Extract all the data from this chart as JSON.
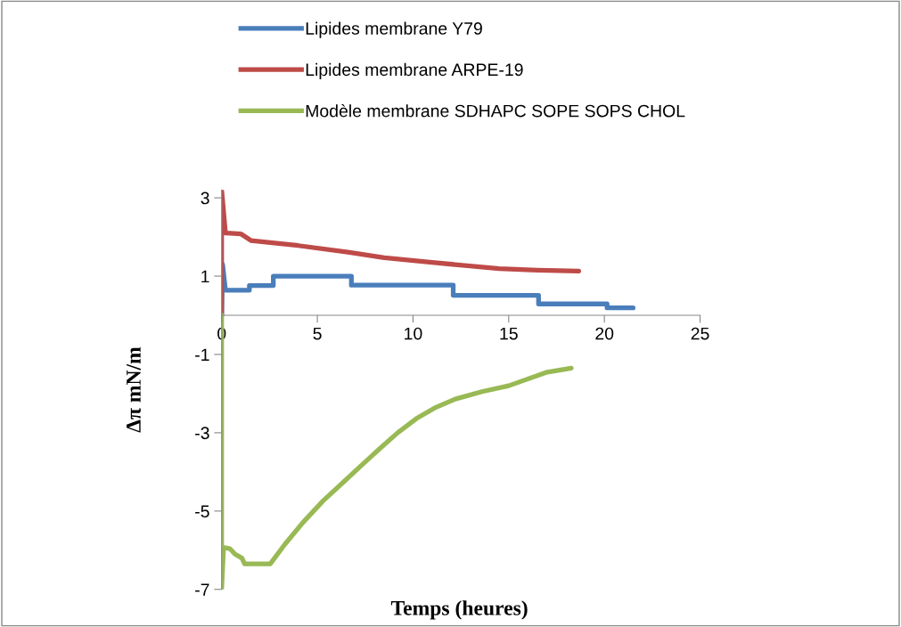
{
  "chart_data": {
    "type": "line",
    "xlabel": "Temps (heures)",
    "ylabel": "Δπ mN/m",
    "xlim": [
      0,
      25
    ],
    "xticks": [
      0,
      5,
      10,
      15,
      20,
      25
    ],
    "ylim": [
      -7,
      3.2
    ],
    "yticks": [
      -7,
      -5,
      -3,
      -1,
      1,
      3
    ],
    "grid": false,
    "legend": "top",
    "line_style": "solid",
    "marker": "none",
    "series": [
      {
        "name": "Lipides membrane Y79",
        "color": "#4a7ebb",
        "x": [
          0,
          0.05,
          0.2,
          1.45,
          1.45,
          2.7,
          2.7,
          6.78,
          6.78,
          12.1,
          12.1,
          16.56,
          16.56,
          20.14,
          20.14,
          21.5
        ],
        "values": [
          0,
          1.3,
          0.64,
          0.64,
          0.76,
          0.76,
          1.0,
          1.0,
          0.77,
          0.77,
          0.51,
          0.51,
          0.29,
          0.29,
          0.19,
          0.19
        ]
      },
      {
        "name": "Lipides membrane ARPE-19",
        "color": "#be4b48",
        "x": [
          0,
          0,
          0.2,
          1.0,
          1.53,
          4.0,
          6.6,
          8.5,
          11.0,
          14.5,
          16.5,
          18.66
        ],
        "values": [
          0,
          3.2,
          2.1,
          2.08,
          1.91,
          1.78,
          1.61,
          1.47,
          1.35,
          1.19,
          1.15,
          1.13
        ]
      },
      {
        "name": "Modèle membrane SDHAPC SOPE SOPS CHOL",
        "color": "#98b954",
        "x": [
          0,
          0,
          0.1,
          0.43,
          0.7,
          1.06,
          1.2,
          2.54,
          3.3,
          4.25,
          5.3,
          6.43,
          7.4,
          8.3,
          9.2,
          10.17,
          11.2,
          12.2,
          13.6,
          15.0,
          16.95,
          18.27
        ],
        "values": [
          0,
          -7,
          -5.93,
          -5.96,
          -6.1,
          -6.2,
          -6.35,
          -6.35,
          -5.85,
          -5.29,
          -4.74,
          -4.23,
          -3.79,
          -3.39,
          -3.0,
          -2.64,
          -2.35,
          -2.14,
          -1.95,
          -1.8,
          -1.46,
          -1.35
        ]
      }
    ]
  }
}
